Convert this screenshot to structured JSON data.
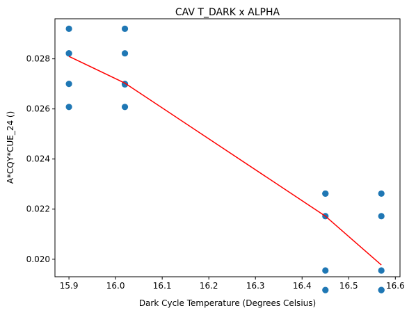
{
  "chart_data": {
    "type": "scatter",
    "title": "CAV T_DARK x ALPHA",
    "xlabel": "Dark Cycle Temperature (Degrees Celsius)",
    "ylabel": "A*CQY*CUE_24 ()",
    "xlim": [
      15.87,
      16.61
    ],
    "ylim": [
      0.0193,
      0.0296
    ],
    "x_ticks": [
      "15.9",
      "16.0",
      "16.1",
      "16.2",
      "16.3",
      "16.4",
      "16.5",
      "16.6"
    ],
    "y_ticks": [
      "0.020",
      "0.022",
      "0.024",
      "0.026",
      "0.028"
    ],
    "grid": false,
    "point_color": "#1f77b4",
    "line_color": "#ff0000",
    "scatter_points": [
      {
        "x": 15.9,
        "y": 0.0292
      },
      {
        "x": 15.9,
        "y": 0.02822
      },
      {
        "x": 15.9,
        "y": 0.02822
      },
      {
        "x": 15.9,
        "y": 0.027
      },
      {
        "x": 15.9,
        "y": 0.02608
      },
      {
        "x": 16.02,
        "y": 0.0292
      },
      {
        "x": 16.02,
        "y": 0.02822
      },
      {
        "x": 16.02,
        "y": 0.027
      },
      {
        "x": 16.02,
        "y": 0.02698
      },
      {
        "x": 16.02,
        "y": 0.02608
      },
      {
        "x": 16.45,
        "y": 0.02262
      },
      {
        "x": 16.45,
        "y": 0.02262
      },
      {
        "x": 16.45,
        "y": 0.02172
      },
      {
        "x": 16.45,
        "y": 0.01955
      },
      {
        "x": 16.45,
        "y": 0.01877
      },
      {
        "x": 16.57,
        "y": 0.02262
      },
      {
        "x": 16.57,
        "y": 0.02172
      },
      {
        "x": 16.57,
        "y": 0.01955
      },
      {
        "x": 16.57,
        "y": 0.01877
      },
      {
        "x": 16.57,
        "y": 0.01877
      }
    ],
    "fit_line": [
      {
        "x": 15.9,
        "y": 0.0281
      },
      {
        "x": 16.02,
        "y": 0.02703
      },
      {
        "x": 16.45,
        "y": 0.02172
      },
      {
        "x": 16.57,
        "y": 0.01977
      }
    ]
  }
}
